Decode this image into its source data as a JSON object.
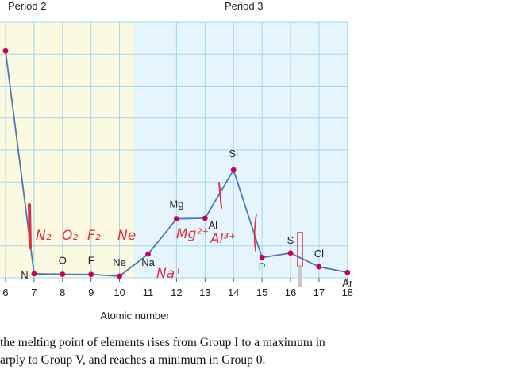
{
  "chart_data": {
    "type": "line",
    "title": "",
    "xlabel": "Atomic number",
    "ylabel": "",
    "xlim": [
      6,
      18
    ],
    "ylim": [
      0,
      4000
    ],
    "x_ticks": [
      "6",
      "7",
      "8",
      "9",
      "10",
      "11",
      "12",
      "13",
      "14",
      "15",
      "16",
      "17",
      "18"
    ],
    "periods": [
      {
        "label": "Period 2",
        "range": [
          6,
          10.5
        ],
        "color": "#fbf9e0"
      },
      {
        "label": "Period 3",
        "range": [
          10.5,
          18
        ],
        "color": "#e6f4fc"
      }
    ],
    "series": [
      {
        "points": [
          {
            "x": 6,
            "y": 3550,
            "label": ""
          },
          {
            "x": 7,
            "y": 63,
            "label": "N"
          },
          {
            "x": 8,
            "y": 55,
            "label": "O"
          },
          {
            "x": 9,
            "y": 53,
            "label": "F"
          },
          {
            "x": 10,
            "y": 25,
            "label": "Ne"
          },
          {
            "x": 11,
            "y": 371,
            "label": "Na"
          },
          {
            "x": 12,
            "y": 923,
            "label": "Mg"
          },
          {
            "x": 13,
            "y": 933,
            "label": "Al"
          },
          {
            "x": 14,
            "y": 1687,
            "label": "Si"
          },
          {
            "x": 15,
            "y": 317,
            "label": "P"
          },
          {
            "x": 16,
            "y": 388,
            "label": "S"
          },
          {
            "x": 17,
            "y": 172,
            "label": "Cl"
          },
          {
            "x": 18,
            "y": 84,
            "label": "Ar"
          }
        ],
        "line_color": "#4a78b8",
        "marker_color": "#c8005a"
      }
    ],
    "grid": true,
    "handwritten_annotations": [
      "N₂",
      "O₂",
      "F₂",
      "Ne",
      "Mg²⁺",
      "Al³⁺",
      "Na⁺"
    ]
  },
  "caption": {
    "line1": "the melting point of elements rises from Group I to a maximum in",
    "line2": "arply to Group V, and reaches a minimum in Group 0."
  }
}
